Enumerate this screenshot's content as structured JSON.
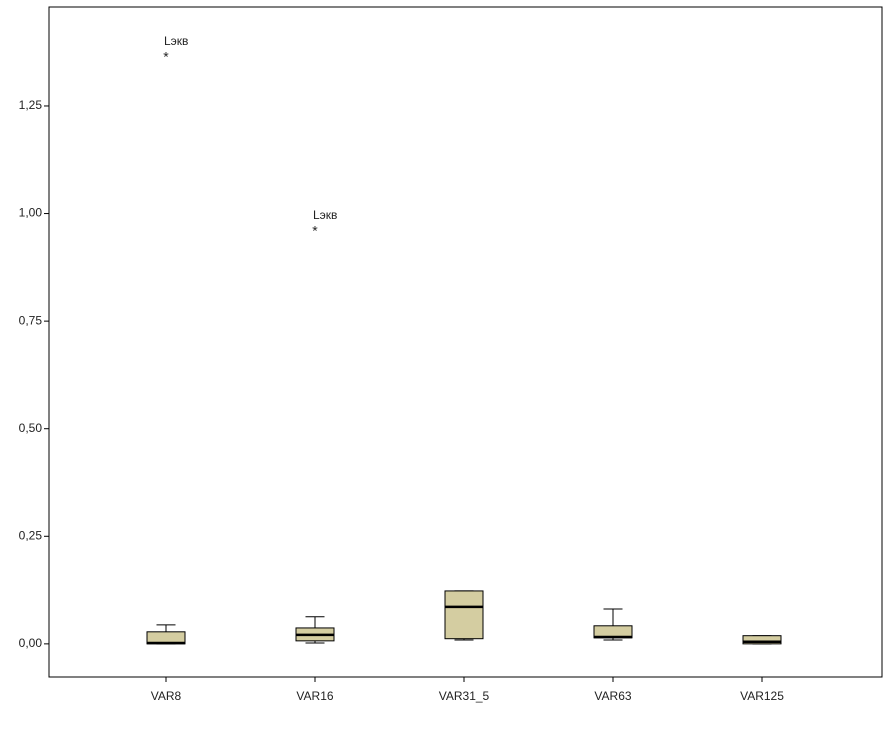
{
  "chart_data": {
    "type": "box",
    "categories": [
      "VAR8",
      "VAR16",
      "VAR31_5",
      "VAR63",
      "VAR125"
    ],
    "min": [
      0.0,
      0.002,
      0.009,
      0.009,
      0.0
    ],
    "q1": [
      0.0,
      0.007,
      0.012,
      0.014,
      0.0
    ],
    "median": [
      0.002,
      0.021,
      0.086,
      0.016,
      0.005
    ],
    "q3": [
      0.028,
      0.037,
      0.123,
      0.042,
      0.019
    ],
    "max": [
      0.044,
      0.063,
      0.123,
      0.081,
      0.019
    ],
    "outliers": [
      [
        {
          "value": 1.364,
          "label": "Lэкв"
        }
      ],
      [
        {
          "value": 0.96,
          "label": "Lэкв"
        }
      ],
      [],
      [],
      []
    ],
    "color": "#d4cda1",
    "ylim": [
      -0.077,
      1.48
    ],
    "yticks": [
      {
        "value": 0,
        "label": "0,00"
      },
      {
        "value": 0.25,
        "label": "0,25"
      },
      {
        "value": 0.5,
        "label": "0,50"
      },
      {
        "value": 0.75,
        "label": "0,75"
      },
      {
        "value": 1.0,
        "label": "1,00"
      },
      {
        "value": 1.25,
        "label": "1,25"
      }
    ]
  }
}
